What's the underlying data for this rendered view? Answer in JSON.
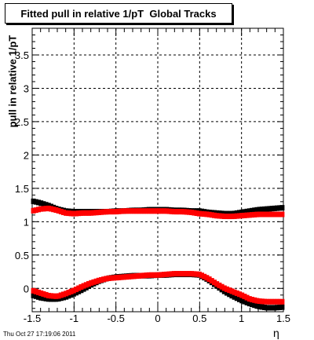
{
  "chart_data": {
    "type": "scatter",
    "title": "Fitted pull in relative 1/pT  Global Tracks",
    "ylabel": "pull in relative 1/pT",
    "xlabel": "η",
    "xlim": [
      -1.5,
      1.5
    ],
    "ylim": [
      -0.35,
      3.9
    ],
    "grid": true,
    "x_ticks": [
      "-1.5",
      "-1",
      "-0.5",
      "0",
      "0.5",
      "1",
      "1.5"
    ],
    "y_ticks": [
      "0",
      "0.5",
      "1",
      "1.5",
      "2",
      "2.5",
      "3",
      "3.5"
    ],
    "series": [
      {
        "color": "#000000",
        "x": [
          -1.5,
          -1.4,
          -1.3,
          -1.2,
          -1.1,
          -1.0,
          -0.9,
          -0.8,
          -0.7,
          -0.6,
          -0.5,
          -0.4,
          -0.3,
          -0.2,
          -0.1,
          0.0,
          0.1,
          0.2,
          0.3,
          0.4,
          0.5,
          0.6,
          0.7,
          0.8,
          0.9,
          1.0,
          1.1,
          1.2,
          1.3,
          1.4,
          1.5
        ],
        "upper": [
          1.31,
          1.28,
          1.24,
          1.19,
          1.16,
          1.15,
          1.15,
          1.15,
          1.15,
          1.15,
          1.16,
          1.16,
          1.17,
          1.17,
          1.18,
          1.18,
          1.18,
          1.17,
          1.17,
          1.16,
          1.16,
          1.14,
          1.13,
          1.12,
          1.12,
          1.14,
          1.16,
          1.18,
          1.19,
          1.2,
          1.21
        ],
        "lower": [
          -0.1,
          -0.14,
          -0.16,
          -0.16,
          -0.13,
          -0.08,
          -0.02,
          0.05,
          0.11,
          0.15,
          0.17,
          0.18,
          0.19,
          0.19,
          0.19,
          0.2,
          0.2,
          0.21,
          0.21,
          0.21,
          0.2,
          0.13,
          0.04,
          -0.05,
          -0.12,
          -0.18,
          -0.23,
          -0.27,
          -0.29,
          -0.29,
          -0.28
        ]
      },
      {
        "color": "#ff0000",
        "x": [
          -1.5,
          -1.4,
          -1.3,
          -1.2,
          -1.1,
          -1.0,
          -0.9,
          -0.8,
          -0.7,
          -0.6,
          -0.5,
          -0.4,
          -0.3,
          -0.2,
          -0.1,
          0.0,
          0.1,
          0.2,
          0.3,
          0.4,
          0.5,
          0.6,
          0.7,
          0.8,
          0.9,
          1.0,
          1.1,
          1.2,
          1.3,
          1.4,
          1.5
        ],
        "upper": [
          1.16,
          1.19,
          1.2,
          1.17,
          1.13,
          1.12,
          1.13,
          1.13,
          1.14,
          1.15,
          1.15,
          1.16,
          1.16,
          1.16,
          1.16,
          1.16,
          1.16,
          1.15,
          1.15,
          1.14,
          1.12,
          1.11,
          1.09,
          1.08,
          1.08,
          1.09,
          1.1,
          1.11,
          1.11,
          1.11,
          1.11
        ],
        "lower": [
          -0.03,
          -0.07,
          -0.11,
          -0.12,
          -0.08,
          -0.03,
          0.03,
          0.08,
          0.12,
          0.15,
          0.16,
          0.17,
          0.18,
          0.19,
          0.2,
          0.2,
          0.21,
          0.22,
          0.22,
          0.22,
          0.21,
          0.15,
          0.07,
          0.0,
          -0.05,
          -0.1,
          -0.16,
          -0.19,
          -0.2,
          -0.2,
          -0.2
        ]
      }
    ],
    "footer_text": "Thu Oct 27 17:19:06 2011"
  }
}
